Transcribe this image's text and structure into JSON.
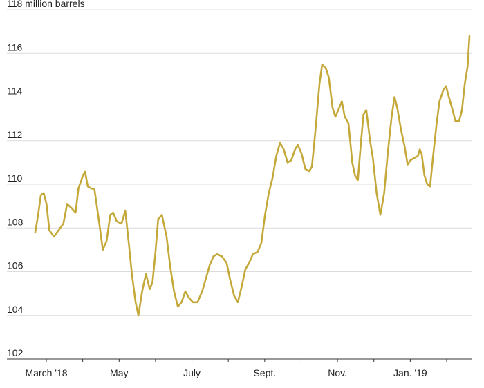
{
  "chart_data": {
    "type": "line",
    "title": "",
    "xlabel": "",
    "ylabel": "",
    "y_unit_label": "million barrels",
    "ylim": [
      102,
      118
    ],
    "yticks": [
      102,
      104,
      106,
      108,
      110,
      112,
      114,
      116,
      118
    ],
    "x_tick_labels": [
      {
        "week": 2,
        "label": "March '18"
      },
      {
        "week": 11,
        "label": "May"
      },
      {
        "week": 20,
        "label": "July"
      },
      {
        "week": 29,
        "label": "Sept."
      },
      {
        "week": 38,
        "label": "Nov."
      },
      {
        "week": 47,
        "label": "Jan. '19"
      }
    ],
    "x_ticks_weeks": [
      2,
      6.5,
      11,
      15.5,
      20,
      24.5,
      29,
      33.5,
      38,
      42.5,
      47,
      51.5
    ],
    "xlim": [
      -1.5,
      54
    ],
    "line_color": "#c4a93a",
    "grid": true,
    "series": [
      {
        "values": [
          [
            0,
            107.8
          ],
          [
            0.3,
            108.6
          ],
          [
            0.6,
            109.5
          ],
          [
            0.9,
            109.6
          ],
          [
            1.2,
            109.1
          ],
          [
            1.5,
            107.9
          ],
          [
            2.0,
            107.6
          ],
          [
            2.5,
            107.9
          ],
          [
            3.0,
            108.2
          ],
          [
            3.4,
            109.1
          ],
          [
            3.9,
            108.9
          ],
          [
            4.3,
            108.7
          ],
          [
            4.6,
            109.8
          ],
          [
            5.0,
            110.3
          ],
          [
            5.3,
            110.6
          ],
          [
            5.6,
            109.9
          ],
          [
            6.0,
            109.8
          ],
          [
            6.3,
            109.8
          ],
          [
            6.8,
            108.3
          ],
          [
            7.2,
            107.0
          ],
          [
            7.6,
            107.4
          ],
          [
            8.0,
            108.6
          ],
          [
            8.3,
            108.7
          ],
          [
            8.7,
            108.3
          ],
          [
            9.2,
            108.2
          ],
          [
            9.6,
            108.8
          ],
          [
            10.0,
            107.2
          ],
          [
            10.3,
            105.9
          ],
          [
            10.7,
            104.6
          ],
          [
            11.0,
            104.0
          ],
          [
            11.4,
            105.1
          ],
          [
            11.8,
            105.9
          ],
          [
            12.2,
            105.2
          ],
          [
            12.5,
            105.5
          ],
          [
            12.8,
            106.8
          ],
          [
            13.1,
            108.4
          ],
          [
            13.5,
            108.6
          ],
          [
            14.0,
            107.6
          ],
          [
            14.4,
            106.2
          ],
          [
            14.8,
            105.1
          ],
          [
            15.2,
            104.4
          ],
          [
            15.6,
            104.6
          ],
          [
            16.0,
            105.1
          ],
          [
            16.4,
            104.8
          ],
          [
            16.8,
            104.6
          ],
          [
            17.3,
            104.6
          ],
          [
            17.8,
            105.1
          ],
          [
            18.2,
            105.7
          ],
          [
            18.6,
            106.3
          ],
          [
            19.0,
            106.7
          ],
          [
            19.4,
            106.8
          ],
          [
            19.9,
            106.7
          ],
          [
            20.4,
            106.4
          ],
          [
            20.8,
            105.6
          ],
          [
            21.2,
            104.9
          ],
          [
            21.6,
            104.6
          ],
          [
            22.0,
            105.3
          ],
          [
            22.4,
            106.1
          ],
          [
            22.8,
            106.4
          ],
          [
            23.2,
            106.8
          ],
          [
            23.7,
            106.9
          ],
          [
            24.1,
            107.3
          ],
          [
            24.5,
            108.6
          ],
          [
            24.9,
            109.6
          ],
          [
            25.3,
            110.3
          ],
          [
            25.7,
            111.3
          ],
          [
            26.1,
            111.9
          ],
          [
            26.5,
            111.6
          ],
          [
            26.9,
            111.0
          ],
          [
            27.3,
            111.1
          ],
          [
            27.7,
            111.6
          ],
          [
            28.0,
            111.8
          ],
          [
            28.4,
            111.4
          ],
          [
            28.8,
            110.7
          ],
          [
            29.2,
            110.6
          ],
          [
            29.5,
            110.8
          ],
          [
            29.9,
            112.6
          ],
          [
            30.3,
            114.6
          ],
          [
            30.6,
            115.5
          ],
          [
            31.0,
            115.3
          ],
          [
            31.3,
            114.9
          ],
          [
            31.7,
            113.5
          ],
          [
            32.0,
            113.1
          ],
          [
            32.4,
            113.5
          ],
          [
            32.7,
            113.8
          ],
          [
            33.0,
            113.1
          ],
          [
            33.4,
            112.8
          ],
          [
            33.8,
            111.0
          ],
          [
            34.1,
            110.4
          ],
          [
            34.4,
            110.2
          ],
          [
            34.7,
            111.8
          ],
          [
            35.0,
            113.2
          ],
          [
            35.3,
            113.4
          ],
          [
            35.7,
            112.0
          ],
          [
            36.0,
            111.2
          ],
          [
            36.4,
            109.6
          ],
          [
            36.8,
            108.6
          ],
          [
            37.2,
            109.6
          ],
          [
            37.6,
            111.5
          ],
          [
            38.0,
            113.1
          ],
          [
            38.3,
            114.0
          ],
          [
            38.6,
            113.5
          ],
          [
            39.0,
            112.5
          ],
          [
            39.4,
            111.7
          ],
          [
            39.7,
            110.9
          ],
          [
            40.0,
            111.1
          ],
          [
            40.4,
            111.2
          ],
          [
            40.8,
            111.3
          ],
          [
            41.0,
            111.6
          ],
          [
            41.2,
            111.4
          ],
          [
            41.5,
            110.4
          ],
          [
            41.8,
            110.0
          ],
          [
            42.1,
            109.9
          ],
          [
            42.4,
            111.2
          ],
          [
            42.8,
            112.8
          ],
          [
            43.1,
            113.8
          ],
          [
            43.5,
            114.3
          ],
          [
            43.8,
            114.5
          ],
          [
            44.1,
            114.0
          ],
          [
            44.5,
            113.4
          ],
          [
            44.8,
            112.9
          ],
          [
            45.2,
            112.9
          ],
          [
            45.5,
            113.4
          ],
          [
            45.8,
            114.6
          ],
          [
            46.1,
            115.4
          ],
          [
            46.3,
            116.8
          ]
        ]
      }
    ]
  }
}
